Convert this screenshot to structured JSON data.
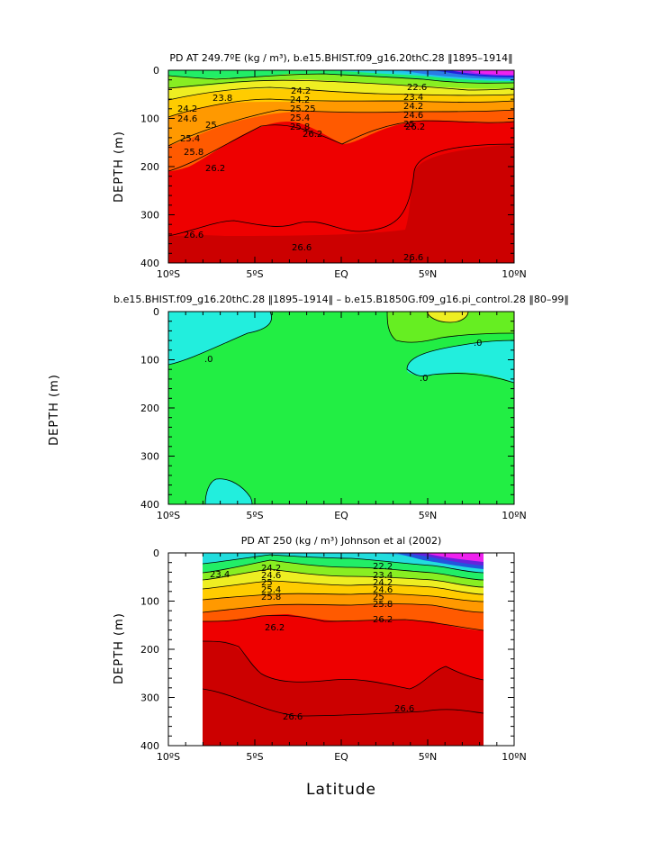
{
  "chart_data": [
    {
      "type": "contour",
      "panel": "top",
      "title": "PD AT 249.7ºE (kg / m³), b.e15.BHIST.f09_g16.20thC.28 ‖1895–1914‖",
      "ylabel": "DEPTH (m)",
      "xticks": [
        "10ºS",
        "5ºS",
        "EQ",
        "5ºN",
        "10ºN"
      ],
      "yticks": [
        "0",
        "100",
        "200",
        "300",
        "400"
      ],
      "xlim": [
        -10,
        10
      ],
      "ylim": [
        400,
        0
      ],
      "contour_labels": [
        "23.8",
        "24.2",
        "24.2",
        "24.6",
        "25",
        "25.4",
        "25.8",
        "26.2",
        "24.2",
        "25.25",
        "25.4",
        "25.8",
        "26.2",
        "22.6",
        "23.4",
        "24.2",
        "24.6",
        "25",
        "25.8",
        "26.2",
        "26.6",
        "26.6",
        "26.6"
      ],
      "colors": {
        "cyan": "#22e6e6",
        "green": "#22ee44",
        "yellow": "#eeee22",
        "orange": "#ff7a00",
        "red": "#ee0000",
        "darkred": "#cc0000",
        "blue": "#2222dd",
        "magenta": "#ee22ee"
      }
    },
    {
      "type": "contour",
      "panel": "middle",
      "title": "b.e15.BHIST.f09_g16.20thC.28 ‖1895–1914‖ – b.e15.B1850G.f09_g16.pi_control.28 ‖80–99‖",
      "ylabel": "DEPTH (m)",
      "xticks": [
        "10ºS",
        "5ºS",
        "EQ",
        "5ºN",
        "10ºN"
      ],
      "yticks": [
        "0",
        "100",
        "200",
        "300",
        "400"
      ],
      "xlim": [
        -10,
        10
      ],
      "ylim": [
        400,
        0
      ],
      "contour_labels": [
        ".0",
        ".0",
        ".0"
      ]
    },
    {
      "type": "contour",
      "panel": "bottom",
      "title": "PD AT 250 (kg / m³) Johnson et al (2002)",
      "ylabel": "DEPTH (m)",
      "xlabel": "Latitude",
      "xticks": [
        "10ºS",
        "5ºS",
        "EQ",
        "5ºN",
        "10ºN"
      ],
      "yticks": [
        "0",
        "100",
        "200",
        "300",
        "400"
      ],
      "xlim": [
        -10,
        10
      ],
      "ylim": [
        400,
        0
      ],
      "contour_labels": [
        "23.4",
        "24.2",
        "24.6",
        "25",
        "25.4",
        "25.8",
        "22.2",
        "23.4",
        "24.2",
        "24.6",
        "25",
        "25.8",
        "26.2",
        "26.2",
        "26.6",
        "26.6"
      ]
    }
  ]
}
